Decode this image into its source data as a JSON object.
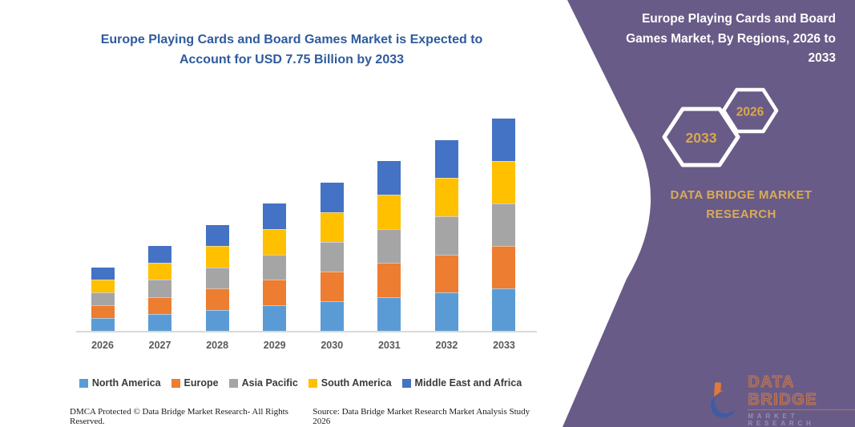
{
  "left": {
    "title_lines": [
      "Europe Playing Cards and Board Games Market is Expected to",
      "Account for USD 7.75 Billion by 2033"
    ],
    "footer_left": "DMCA Protected © Data Bridge Market Research-  All Rights Reserved.",
    "footer_right": "Source: Data Bridge Market Research  Market Analysis Study 2026"
  },
  "right_panel": {
    "title_lines": [
      "Europe Playing Cards and Board",
      "Games Market, By Regions, 2026 to",
      "2033"
    ],
    "hexagon_back_label": "2033",
    "hexagon_front_label": "2026",
    "brand_lines": [
      "DATA BRIDGE MARKET",
      "RESEARCH"
    ],
    "logo": {
      "name": "DATA BRIDGE",
      "sub": "MARKET RESEARCH"
    },
    "colors": {
      "background": "#695b87",
      "accent_gold": "#d9ab57",
      "title_white": "#ffffff"
    }
  },
  "chart_data": {
    "type": "bar",
    "stacked": true,
    "title": "Europe Playing Cards and Board Games Market is Expected to Account for USD 7.75 Billion by 2033",
    "unit": "USD Billion",
    "categories": [
      "2026",
      "2027",
      "2028",
      "2029",
      "2030",
      "2031",
      "2032",
      "2033"
    ],
    "series": [
      {
        "name": "North America",
        "color": "#5B9BD5",
        "values": [
          0.465,
          0.62,
          0.775,
          0.93,
          1.085,
          1.24,
          1.395,
          1.55
        ]
      },
      {
        "name": "Europe",
        "color": "#ED7D31",
        "values": [
          0.465,
          0.62,
          0.775,
          0.93,
          1.085,
          1.24,
          1.395,
          1.55
        ]
      },
      {
        "name": "Asia Pacific",
        "color": "#A5A5A5",
        "values": [
          0.465,
          0.62,
          0.775,
          0.93,
          1.085,
          1.24,
          1.395,
          1.55
        ]
      },
      {
        "name": "South America",
        "color": "#FFC000",
        "values": [
          0.465,
          0.62,
          0.775,
          0.93,
          1.085,
          1.24,
          1.395,
          1.55
        ]
      },
      {
        "name": "Middle East and Africa",
        "color": "#4472C4",
        "values": [
          0.465,
          0.62,
          0.775,
          0.93,
          1.085,
          1.24,
          1.395,
          1.55
        ]
      }
    ],
    "totals": [
      2.325,
      3.1,
      3.875,
      4.65,
      5.425,
      6.2,
      6.975,
      7.75
    ],
    "ylim": [
      0,
      7.75
    ],
    "gridlines": false,
    "y_axis_visible": false,
    "legend_position": "bottom"
  }
}
